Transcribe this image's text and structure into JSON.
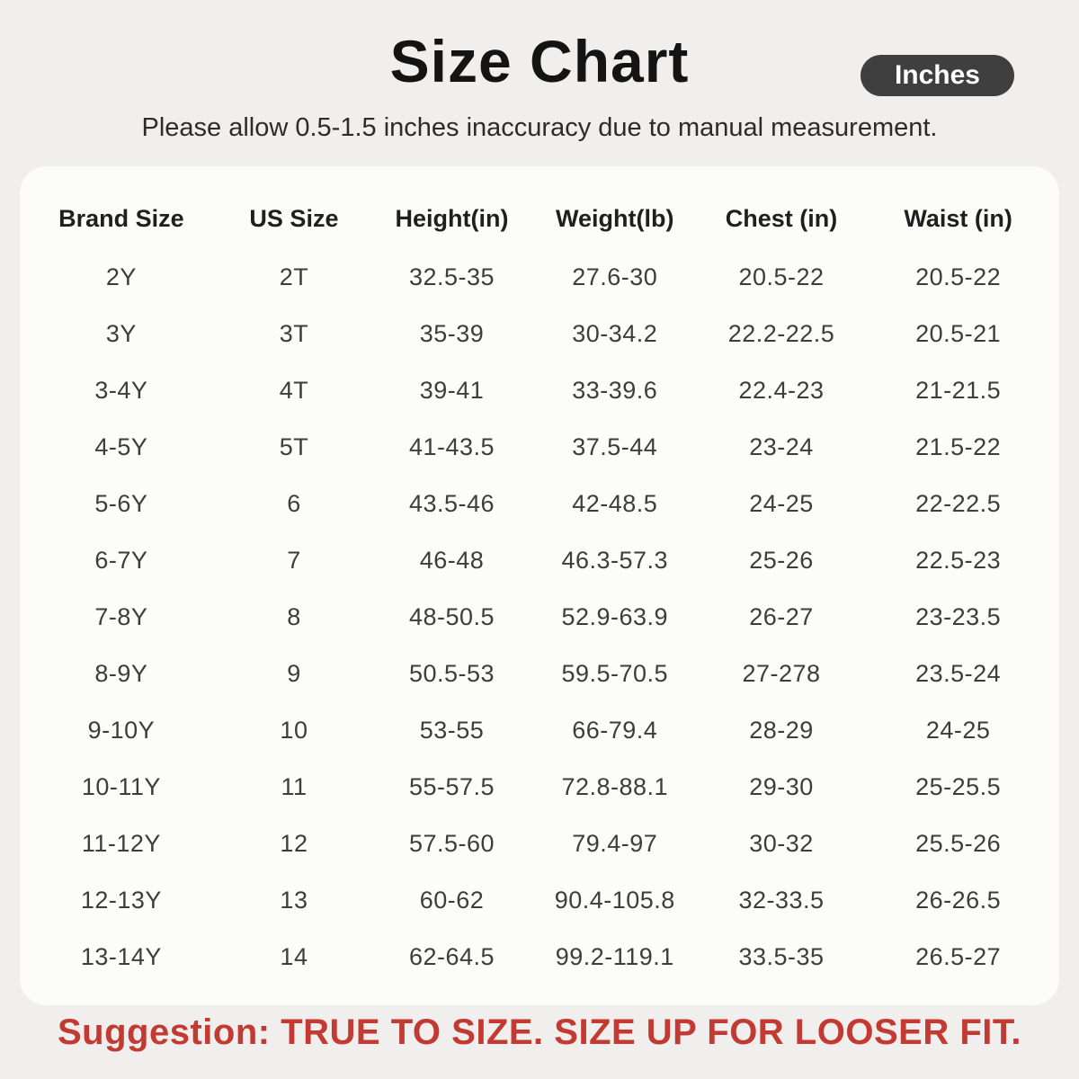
{
  "header": {
    "title": "Size Chart",
    "unit_badge": "Inches",
    "subtitle": "Please allow 0.5-1.5 inches inaccuracy due to manual measurement."
  },
  "table": {
    "columns": [
      "Brand Size",
      "US Size",
      "Height(in)",
      "Weight(lb)",
      "Chest (in)",
      "Waist (in)"
    ],
    "rows": [
      [
        "2Y",
        "2T",
        "32.5-35",
        "27.6-30",
        "20.5-22",
        "20.5-22"
      ],
      [
        "3Y",
        "3T",
        "35-39",
        "30-34.2",
        "22.2-22.5",
        "20.5-21"
      ],
      [
        "3-4Y",
        "4T",
        "39-41",
        "33-39.6",
        "22.4-23",
        "21-21.5"
      ],
      [
        "4-5Y",
        "5T",
        "41-43.5",
        "37.5-44",
        "23-24",
        "21.5-22"
      ],
      [
        "5-6Y",
        "6",
        "43.5-46",
        "42-48.5",
        "24-25",
        "22-22.5"
      ],
      [
        "6-7Y",
        "7",
        "46-48",
        "46.3-57.3",
        "25-26",
        "22.5-23"
      ],
      [
        "7-8Y",
        "8",
        "48-50.5",
        "52.9-63.9",
        "26-27",
        "23-23.5"
      ],
      [
        "8-9Y",
        "9",
        "50.5-53",
        "59.5-70.5",
        "27-278",
        "23.5-24"
      ],
      [
        "9-10Y",
        "10",
        "53-55",
        "66-79.4",
        "28-29",
        "24-25"
      ],
      [
        "10-11Y",
        "11",
        "55-57.5",
        "72.8-88.1",
        "29-30",
        "25-25.5"
      ],
      [
        "11-12Y",
        "12",
        "57.5-60",
        "79.4-97",
        "30-32",
        "25.5-26"
      ],
      [
        "12-13Y",
        "13",
        "60-62",
        "90.4-105.8",
        "32-33.5",
        "26-26.5"
      ],
      [
        "13-14Y",
        "14",
        "62-64.5",
        "99.2-119.1",
        "33.5-35",
        "26.5-27"
      ]
    ]
  },
  "footer": {
    "suggestion": "Suggestion: TRUE TO SIZE. SIZE UP FOR LOOSER FIT."
  },
  "colors": {
    "page_bg": "#f0efed",
    "card_bg": "#fcfcfb",
    "badge_bg": "#3f3f3f",
    "badge_text": "#ffffff",
    "title_text": "#141414",
    "body_text": "#3d3d3d",
    "suggestion_red": "#c23a32"
  }
}
